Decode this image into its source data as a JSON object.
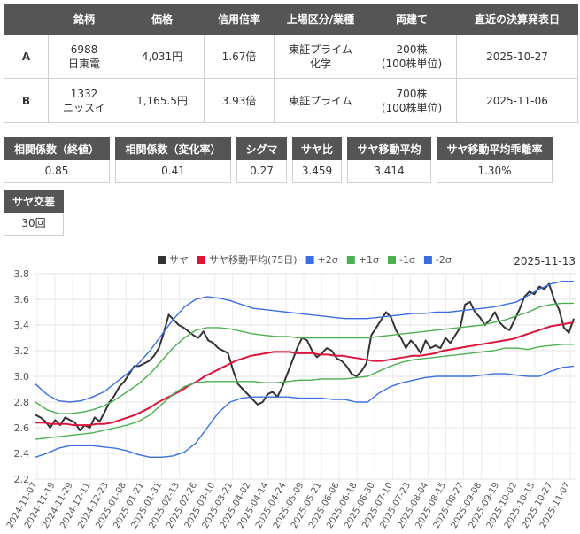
{
  "pair_table": {
    "headers": [
      "銘柄",
      "価格",
      "信用倍率",
      "上場区分/業種",
      "両建て",
      "直近の決算発表日"
    ],
    "rows": [
      {
        "label": "A",
        "code": "6988",
        "name": "日東電",
        "price": "4,031円",
        "margin_ratio": "1.67倍",
        "market1": "東証プライム",
        "market2": "化学",
        "hedge1": "200株",
        "hedge2": "(100株単位)",
        "earnings": "2025-10-27"
      },
      {
        "label": "B",
        "code": "1332",
        "name": "ニッスイ",
        "price": "1,165.5円",
        "margin_ratio": "3.93倍",
        "market1": "東証プライム",
        "market2": "",
        "hedge1": "700株",
        "hedge2": "(100株単位)",
        "earnings": "2025-11-06"
      }
    ]
  },
  "stats": [
    {
      "label": "相関係数（終値）",
      "value": "0.85"
    },
    {
      "label": "相関係数（変化率）",
      "value": "0.41"
    },
    {
      "label": "シグマ",
      "value": "0.27"
    },
    {
      "label": "サヤ比",
      "value": "3.459"
    },
    {
      "label": "サヤ移動平均",
      "value": "3.414"
    },
    {
      "label": "サヤ移動平均乖離率",
      "value": "1.30%"
    },
    {
      "label": "サヤ交差",
      "value": "30回"
    }
  ],
  "chart_data": {
    "type": "line",
    "date_label": "2025-11-13",
    "ylim": [
      2.2,
      3.8
    ],
    "yticks": [
      "2.2",
      "2.4",
      "2.6",
      "2.8",
      "3.0",
      "3.2",
      "3.4",
      "3.6",
      "3.8"
    ],
    "grid": true,
    "legend_position": "top-center",
    "x_tick_labels": [
      "2024-11-07",
      "2024-11-19",
      "2024-11-29",
      "2024-12-11",
      "2024-12-23",
      "2025-01-08",
      "2025-01-21",
      "2025-01-31",
      "2025-02-13",
      "2025-02-26",
      "2025-03-10",
      "2025-03-21",
      "2025-04-02",
      "2025-04-14",
      "2025-04-24",
      "2025-05-09",
      "2025-05-21",
      "2025-06-06",
      "2025-06-18",
      "2025-06-30",
      "2025-07-10",
      "2025-07-23",
      "2025-08-04",
      "2025-08-15",
      "2025-08-27",
      "2025-09-08",
      "2025-09-19",
      "2025-10-02",
      "2025-10-15",
      "2025-10-27",
      "2025-11-07"
    ],
    "series": [
      {
        "name": "サヤ",
        "color": "#333333",
        "width": 2,
        "values": [
          2.7,
          2.68,
          2.65,
          2.6,
          2.66,
          2.62,
          2.68,
          2.66,
          2.64,
          2.58,
          2.62,
          2.6,
          2.68,
          2.65,
          2.72,
          2.8,
          2.85,
          2.92,
          2.96,
          3.02,
          3.08,
          3.08,
          3.1,
          3.12,
          3.16,
          3.22,
          3.34,
          3.48,
          3.44,
          3.4,
          3.38,
          3.35,
          3.32,
          3.3,
          3.35,
          3.28,
          3.26,
          3.22,
          3.2,
          3.18,
          3.05,
          2.94,
          2.9,
          2.86,
          2.82,
          2.78,
          2.8,
          2.86,
          2.88,
          2.84,
          2.92,
          3.02,
          3.12,
          3.22,
          3.3,
          3.28,
          3.2,
          3.15,
          3.18,
          3.22,
          3.2,
          3.14,
          3.12,
          3.08,
          3.02,
          3.0,
          3.04,
          3.1,
          3.32,
          3.38,
          3.44,
          3.5,
          3.46,
          3.36,
          3.3,
          3.22,
          3.28,
          3.24,
          3.18,
          3.28,
          3.22,
          3.24,
          3.22,
          3.3,
          3.26,
          3.32,
          3.38,
          3.56,
          3.58,
          3.5,
          3.46,
          3.4,
          3.44,
          3.5,
          3.42,
          3.38,
          3.36,
          3.44,
          3.52,
          3.62,
          3.66,
          3.64,
          3.7,
          3.68,
          3.72,
          3.6,
          3.52,
          3.38,
          3.34,
          3.45
        ]
      },
      {
        "name": "サヤ移動平均(75日)",
        "color": "#dc143c",
        "width": 2,
        "values": [
          2.64,
          2.64,
          2.63,
          2.63,
          2.63,
          2.62,
          2.62,
          2.62,
          2.63,
          2.63,
          2.64,
          2.66,
          2.68,
          2.7,
          2.73,
          2.76,
          2.8,
          2.83,
          2.86,
          2.89,
          2.93,
          2.96,
          3.0,
          3.03,
          3.06,
          3.09,
          3.12,
          3.14,
          3.16,
          3.17,
          3.18,
          3.19,
          3.19,
          3.19,
          3.18,
          3.18,
          3.18,
          3.17,
          3.17,
          3.16,
          3.16,
          3.15,
          3.14,
          3.13,
          3.12,
          3.12,
          3.13,
          3.14,
          3.15,
          3.16,
          3.16,
          3.17,
          3.18,
          3.2,
          3.21,
          3.22,
          3.23,
          3.24,
          3.25,
          3.26,
          3.27,
          3.28,
          3.29,
          3.31,
          3.33,
          3.35,
          3.37,
          3.39,
          3.4,
          3.41,
          3.42
        ]
      },
      {
        "name": "+2σ",
        "color": "#3b6fe0",
        "width": 1.4,
        "values": [
          2.94,
          2.86,
          2.81,
          2.8,
          2.81,
          2.84,
          2.88,
          2.95,
          3.02,
          3.1,
          3.2,
          3.32,
          3.44,
          3.54,
          3.6,
          3.62,
          3.61,
          3.59,
          3.56,
          3.53,
          3.52,
          3.51,
          3.5,
          3.49,
          3.48,
          3.47,
          3.46,
          3.45,
          3.45,
          3.45,
          3.46,
          3.47,
          3.48,
          3.49,
          3.49,
          3.5,
          3.5,
          3.51,
          3.52,
          3.53,
          3.54,
          3.56,
          3.58,
          3.63,
          3.68,
          3.72,
          3.74,
          3.74
        ]
      },
      {
        "name": "+1σ",
        "color": "#4caf50",
        "width": 1.4,
        "values": [
          2.8,
          2.74,
          2.71,
          2.71,
          2.72,
          2.74,
          2.77,
          2.82,
          2.88,
          2.94,
          3.02,
          3.12,
          3.22,
          3.3,
          3.36,
          3.38,
          3.38,
          3.37,
          3.35,
          3.33,
          3.32,
          3.31,
          3.31,
          3.3,
          3.3,
          3.3,
          3.3,
          3.3,
          3.3,
          3.3,
          3.31,
          3.32,
          3.33,
          3.34,
          3.35,
          3.36,
          3.37,
          3.38,
          3.39,
          3.4,
          3.42,
          3.44,
          3.47,
          3.5,
          3.54,
          3.56,
          3.57,
          3.57
        ]
      },
      {
        "name": "-1σ",
        "color": "#4caf50",
        "width": 1.4,
        "values": [
          2.51,
          2.52,
          2.53,
          2.54,
          2.55,
          2.56,
          2.58,
          2.6,
          2.62,
          2.65,
          2.7,
          2.78,
          2.86,
          2.92,
          2.95,
          2.96,
          2.96,
          2.96,
          2.96,
          2.96,
          2.95,
          2.95,
          2.96,
          2.97,
          2.97,
          2.98,
          2.98,
          2.98,
          2.99,
          3.0,
          3.04,
          3.08,
          3.11,
          3.13,
          3.14,
          3.15,
          3.16,
          3.17,
          3.18,
          3.19,
          3.2,
          3.22,
          3.22,
          3.21,
          3.23,
          3.24,
          3.25,
          3.25
        ]
      },
      {
        "name": "-2σ",
        "color": "#3b6fe0",
        "width": 1.4,
        "values": [
          2.37,
          2.4,
          2.44,
          2.46,
          2.46,
          2.46,
          2.45,
          2.44,
          2.42,
          2.39,
          2.37,
          2.37,
          2.38,
          2.41,
          2.48,
          2.6,
          2.72,
          2.8,
          2.83,
          2.84,
          2.84,
          2.84,
          2.84,
          2.83,
          2.83,
          2.83,
          2.82,
          2.82,
          2.8,
          2.8,
          2.87,
          2.92,
          2.95,
          2.97,
          2.99,
          3.0,
          3.0,
          3.0,
          3.0,
          3.01,
          3.02,
          3.02,
          3.01,
          3.0,
          3.0,
          3.04,
          3.07,
          3.08
        ]
      }
    ]
  }
}
